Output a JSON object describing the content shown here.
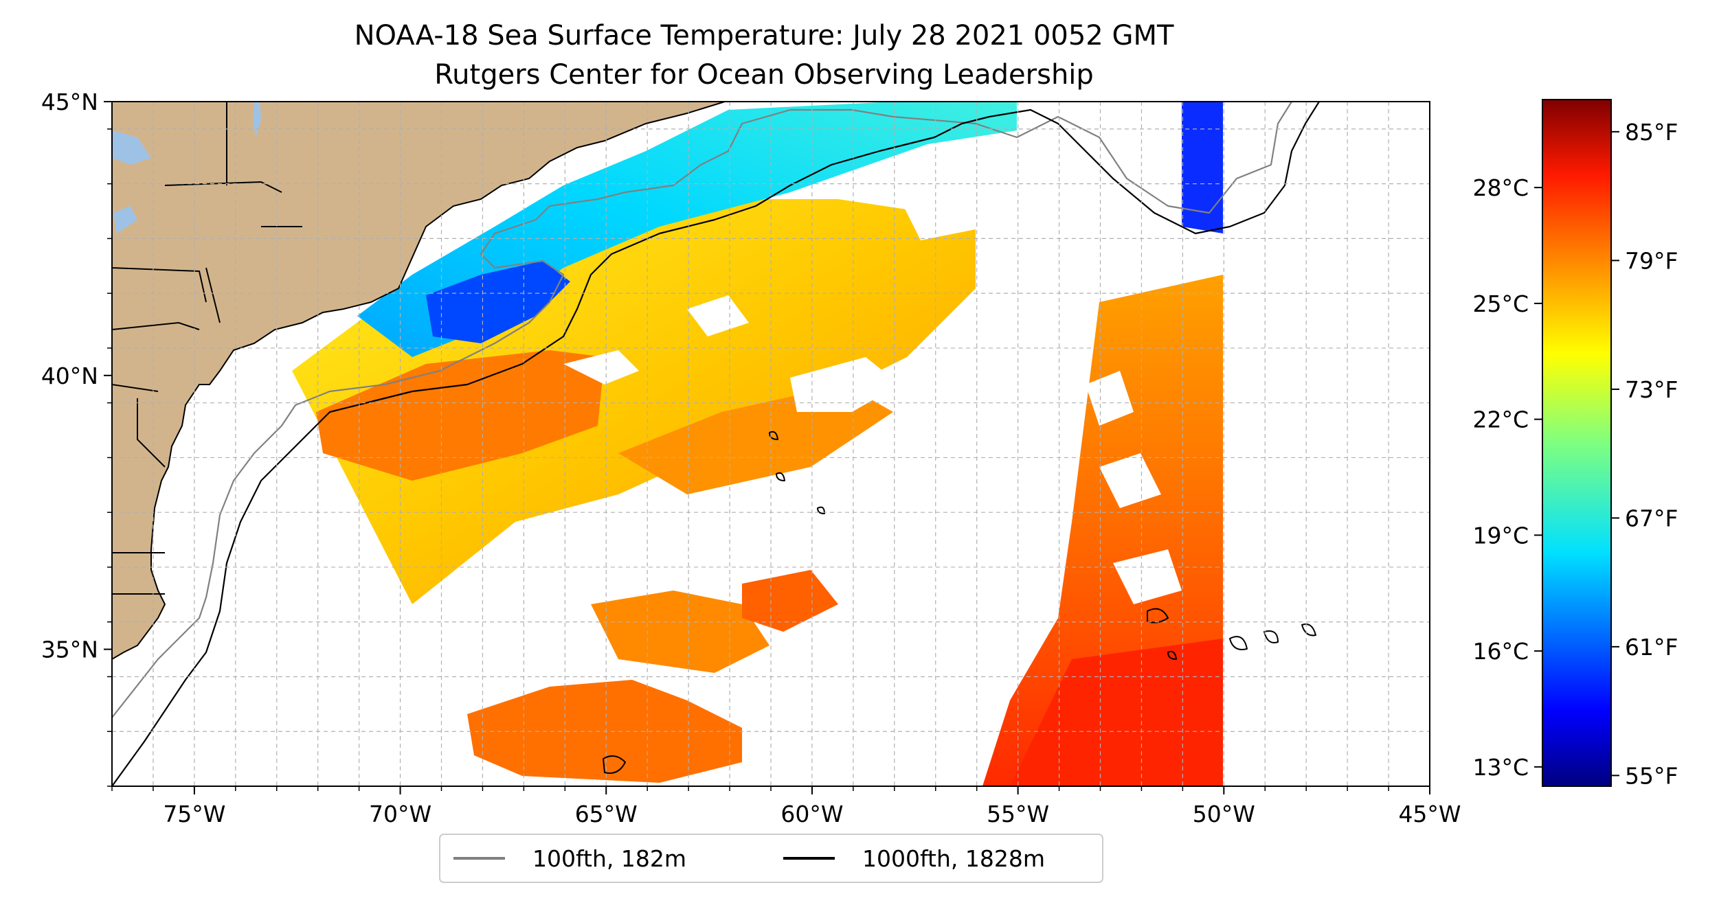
{
  "title": "NOAA-18 Sea Surface Temperature: July 28 2021 0052 GMT",
  "subtitle": "Rutgers Center for Ocean Observing Leadership",
  "map": {
    "lon_range": [
      -77,
      -45
    ],
    "lat_range": [
      32.5,
      45
    ],
    "lon_ticks": [
      {
        "value": -75,
        "label": "75°W"
      },
      {
        "value": -70,
        "label": "70°W"
      },
      {
        "value": -65,
        "label": "65°W"
      },
      {
        "value": -60,
        "label": "60°W"
      },
      {
        "value": -55,
        "label": "55°W"
      },
      {
        "value": -50,
        "label": "50°W"
      },
      {
        "value": -45,
        "label": "45°W"
      }
    ],
    "lat_ticks": [
      {
        "value": 45,
        "label": "45°N"
      },
      {
        "value": 40,
        "label": "40°N"
      },
      {
        "value": 35,
        "label": "35°N"
      }
    ],
    "grid": true,
    "land_color": "#d2b48c",
    "lake_color": "#9ec2e6"
  },
  "colorbar": {
    "colormap": "jet",
    "range_f": [
      54.5,
      86.5
    ],
    "celsius_ticks": [
      {
        "value": 13,
        "label": "13°C"
      },
      {
        "value": 16,
        "label": "16°C"
      },
      {
        "value": 19,
        "label": "19°C"
      },
      {
        "value": 22,
        "label": "22°C"
      },
      {
        "value": 25,
        "label": "25°C"
      },
      {
        "value": 28,
        "label": "28°C"
      }
    ],
    "fahrenheit_ticks": [
      {
        "value": 55,
        "label": "55°F"
      },
      {
        "value": 61,
        "label": "61°F"
      },
      {
        "value": 67,
        "label": "67°F"
      },
      {
        "value": 73,
        "label": "73°F"
      },
      {
        "value": 79,
        "label": "79°F"
      },
      {
        "value": 85,
        "label": "85°F"
      }
    ]
  },
  "legend": {
    "placement": "bottom-center",
    "items": [
      {
        "label": "100fth, 182m",
        "color": "#808080"
      },
      {
        "label": "1000fth, 1828m",
        "color": "#000000"
      }
    ]
  }
}
